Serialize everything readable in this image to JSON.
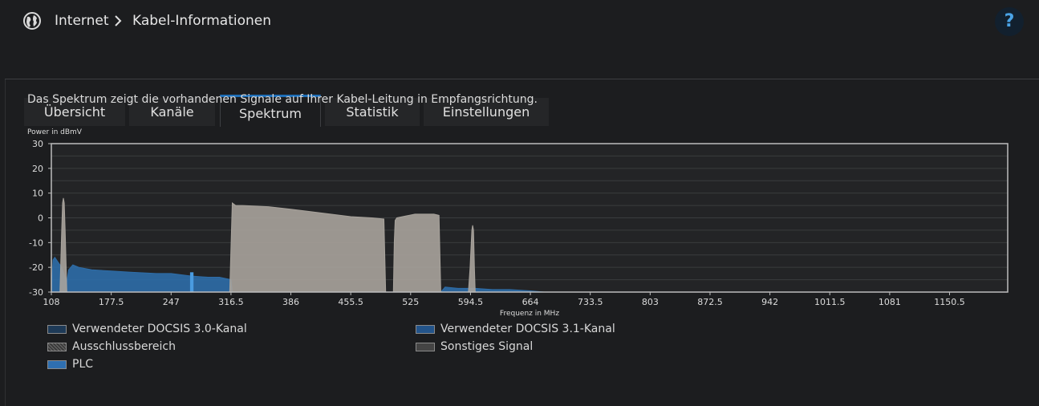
{
  "breadcrumb": {
    "section": "Internet",
    "page": "Kabel-Informationen"
  },
  "help_label": "?",
  "tabs": [
    {
      "label": "Übersicht",
      "active": false
    },
    {
      "label": "Kanäle",
      "active": false
    },
    {
      "label": "Spektrum",
      "active": true
    },
    {
      "label": "Statistik",
      "active": false
    },
    {
      "label": "Einstellungen",
      "active": false
    }
  ],
  "description": "Das Spektrum zeigt die vorhandenen Signale auf Ihrer Kabel-Leitung in Empfangsrichtung.",
  "colors": {
    "docsis30": "#1e3a57",
    "docsis31": "#23548a",
    "exclusion": "#555555",
    "plc": "#2f6fb0",
    "other": "#444444",
    "spectrum_blue": "#2e6da8",
    "spectrum_gray": "#a8a39c"
  },
  "legend": [
    {
      "label": "Verwendeter DOCSIS 3.0-Kanal",
      "key": "docsis30"
    },
    {
      "label": "Verwendeter DOCSIS 3.1-Kanal",
      "key": "docsis31"
    },
    {
      "label": "Ausschlussbereich",
      "key": "exclusion"
    },
    {
      "label": "Sonstiges Signal",
      "key": "other"
    },
    {
      "label": "PLC",
      "key": "plc"
    }
  ],
  "chart_data": {
    "type": "area",
    "ylabel": "Power in dBmV",
    "xlabel": "Frequenz in MHz",
    "xlim": [
      108,
      1218
    ],
    "ylim": [
      -30,
      30
    ],
    "grid": true,
    "x_ticks": [
      108,
      177.5,
      247,
      316.5,
      386,
      455.5,
      525,
      594.5,
      664,
      733.5,
      803,
      872.5,
      942,
      1011.5,
      1081,
      1150.5
    ],
    "y_ticks": [
      30,
      20,
      10,
      0,
      -10,
      -20,
      -30
    ],
    "series": [
      {
        "color_key": "spectrum_blue",
        "x": [
          108,
          110,
          112,
          116,
          120,
          126,
          128,
          133,
          140,
          155,
          177.5,
          200,
          230,
          247,
          270,
          290,
          303,
          316.5,
          318,
          560,
          565,
          580,
          600,
          620,
          640,
          664,
          680,
          700
        ],
        "y": [
          -30,
          -17,
          -16,
          -18,
          -20,
          -26,
          -21,
          -19,
          -20,
          -21,
          -21.5,
          -22,
          -22.5,
          -22.5,
          -23.5,
          -24,
          -24,
          -25,
          -30,
          -30,
          -28,
          -28.5,
          -28.5,
          -29,
          -29,
          -29.5,
          -30,
          -30
        ]
      },
      {
        "color_key": "spectrum_gray",
        "x": [
          118,
          120,
          121,
          122,
          123,
          124,
          126,
          315,
          318,
          322,
          330,
          360,
          386,
          420,
          455.5,
          480,
          494,
          496,
          497,
          499,
          505,
          506,
          507,
          509,
          530,
          552,
          558,
          560,
          561,
          592,
          594,
          596,
          597,
          598,
          599,
          600
        ],
        "y": [
          -30,
          -5,
          6,
          8,
          6,
          -5,
          -30,
          -30,
          6,
          5,
          5,
          4.5,
          3.5,
          2,
          0.5,
          0,
          -0.5,
          -30,
          -30,
          -30,
          -30,
          -10,
          -1,
          0,
          1.5,
          1.5,
          1,
          -30,
          -30,
          -30,
          -20,
          -5,
          -3,
          -5,
          -20,
          -30
        ]
      }
    ]
  }
}
